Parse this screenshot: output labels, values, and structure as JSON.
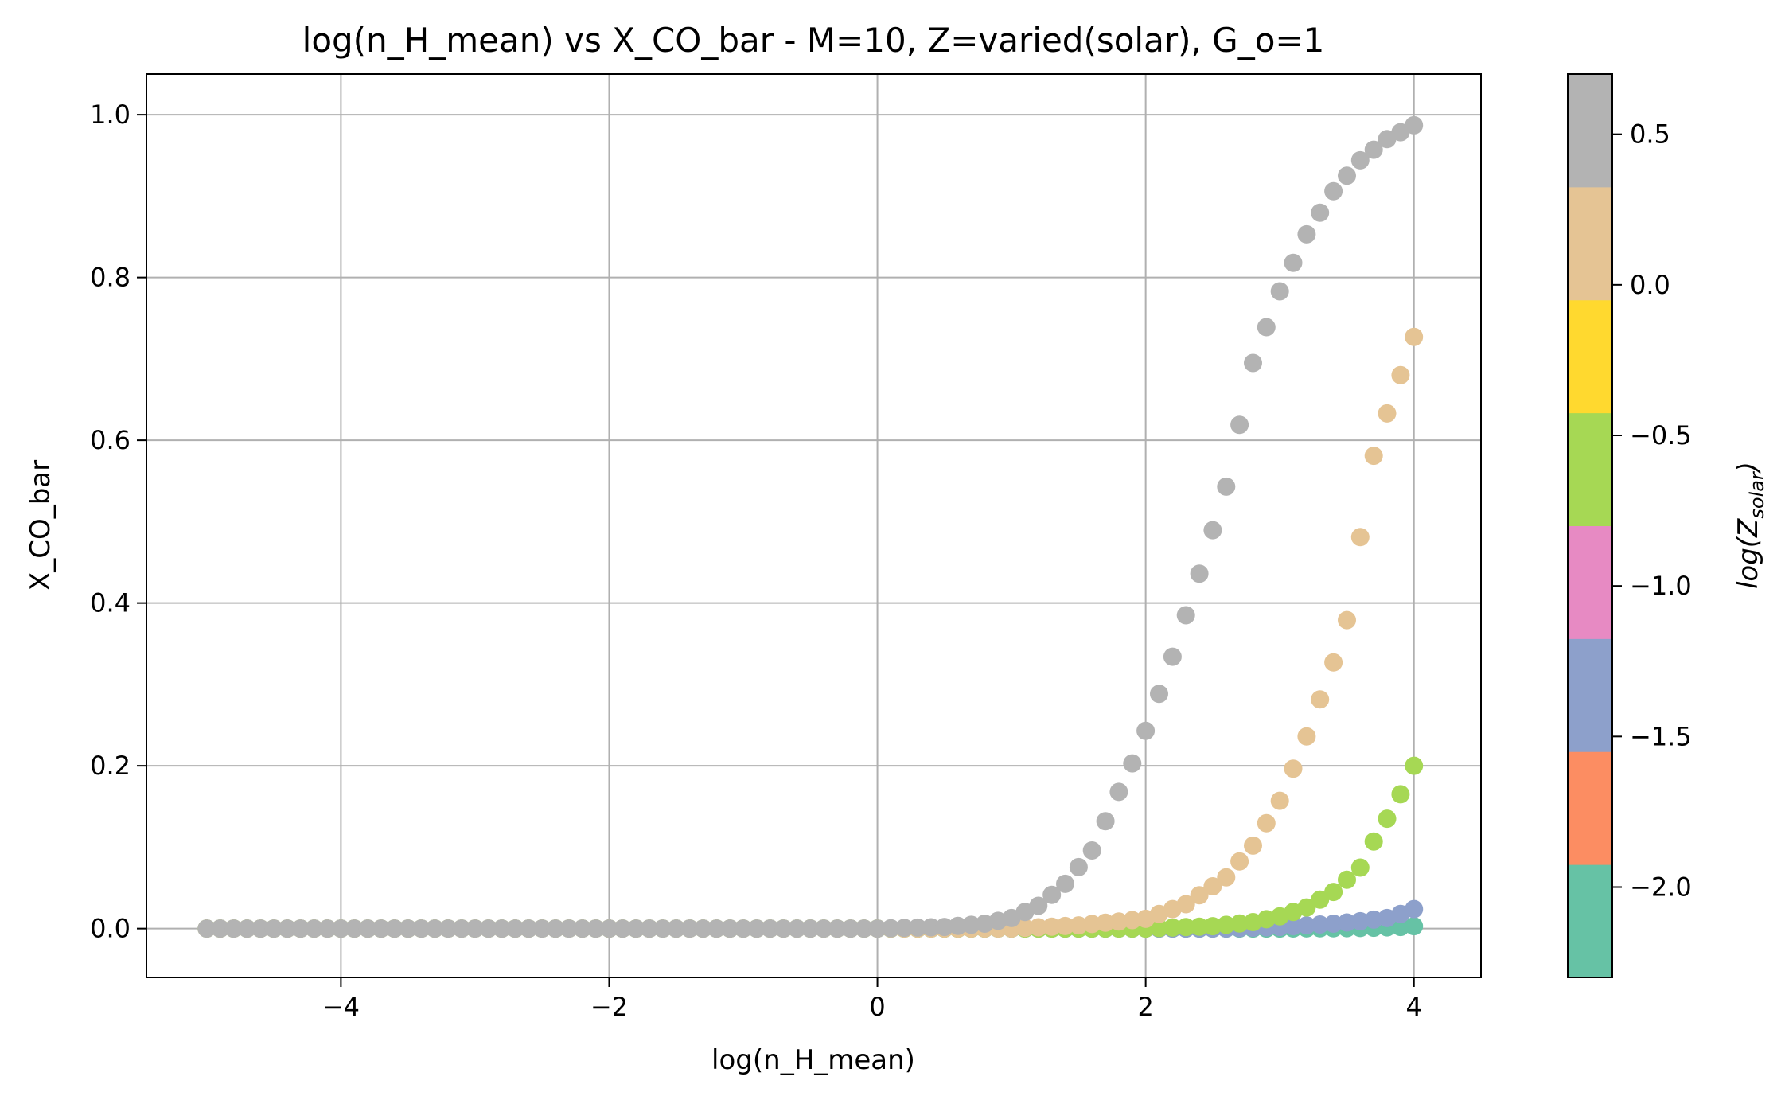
{
  "chart_data": {
    "type": "scatter",
    "title": "log(n_H_mean) vs X_CO_bar - M=10, Z=varied(solar), G_o=1",
    "xlabel": "log(n_H_mean)",
    "ylabel": "X_CO_bar",
    "xlim": [
      -5.45,
      4.5
    ],
    "ylim": [
      -0.06,
      1.05
    ],
    "xticks": [
      -4,
      -2,
      0,
      2,
      4
    ],
    "xtick_labels": [
      "−4",
      "−2",
      "0",
      "2",
      "4"
    ],
    "yticks": [
      0.0,
      0.2,
      0.4,
      0.6,
      0.8,
      1.0
    ],
    "ytick_labels": [
      "0.0",
      "0.2",
      "0.4",
      "0.6",
      "0.8",
      "1.0"
    ],
    "grid": true,
    "marker": "circle",
    "x_range": [
      -5,
      4
    ],
    "points_per_series": 91,
    "series": [
      {
        "z": -2.0,
        "color": "#66c2a5",
        "x": [
          3.0,
          3.5,
          3.75,
          3.9,
          4.0
        ],
        "values": [
          0.0,
          0.0005,
          0.0012,
          0.002,
          0.003
        ]
      },
      {
        "z": -1.5,
        "color": "#8da0cb",
        "x": [
          2.6,
          3.0,
          3.4,
          3.6,
          3.8,
          3.9,
          4.0
        ],
        "values": [
          0.0,
          0.002,
          0.006,
          0.009,
          0.013,
          0.018,
          0.024
        ]
      },
      {
        "z": -0.5,
        "color": "#a6d854",
        "x": [
          2.0,
          2.5,
          2.8,
          3.0,
          3.2,
          3.4,
          3.6,
          3.7,
          3.8,
          3.9,
          4.0
        ],
        "values": [
          0.0,
          0.003,
          0.008,
          0.015,
          0.026,
          0.045,
          0.075,
          0.107,
          0.135,
          0.165,
          0.2
        ]
      },
      {
        "z": 0.0,
        "color": "#e5c494",
        "x": [
          1.0,
          1.5,
          2.0,
          2.3,
          2.6,
          2.8,
          3.0,
          3.2,
          3.4,
          3.5,
          3.6,
          3.7,
          3.8,
          3.9,
          4.0
        ],
        "values": [
          0.0,
          0.004,
          0.012,
          0.03,
          0.063,
          0.102,
          0.157,
          0.236,
          0.327,
          0.379,
          0.481,
          0.581,
          0.633,
          0.68,
          0.727
        ]
      },
      {
        "z": 0.5,
        "color": "#b3b3b3",
        "x": [
          0.0,
          0.5,
          0.8,
          1.0,
          1.2,
          1.4,
          1.6,
          1.8,
          1.9,
          2.0,
          2.2,
          2.4,
          2.6,
          2.8,
          3.0,
          3.2,
          3.4,
          3.6,
          3.8,
          4.0
        ],
        "values": [
          0.0,
          0.002,
          0.006,
          0.013,
          0.028,
          0.055,
          0.096,
          0.168,
          0.203,
          0.243,
          0.334,
          0.436,
          0.543,
          0.695,
          0.783,
          0.853,
          0.906,
          0.944,
          0.97,
          0.987
        ]
      }
    ],
    "colorbar": {
      "label": "log(Z",
      "label_subscript": "solar",
      "range": [
        -2.3,
        0.7
      ],
      "ticks": [
        -2.0,
        -1.5,
        -1.0,
        -0.5,
        0.0,
        0.5
      ],
      "tick_labels": [
        "−2.0",
        "−1.5",
        "−1.0",
        "−0.5",
        "0.0",
        "0.5"
      ],
      "colors": [
        "#66c2a5",
        "#fc8d62",
        "#8da0cb",
        "#e78ac3",
        "#a6d854",
        "#ffd92f",
        "#e5c494",
        "#b3b3b3"
      ]
    }
  }
}
